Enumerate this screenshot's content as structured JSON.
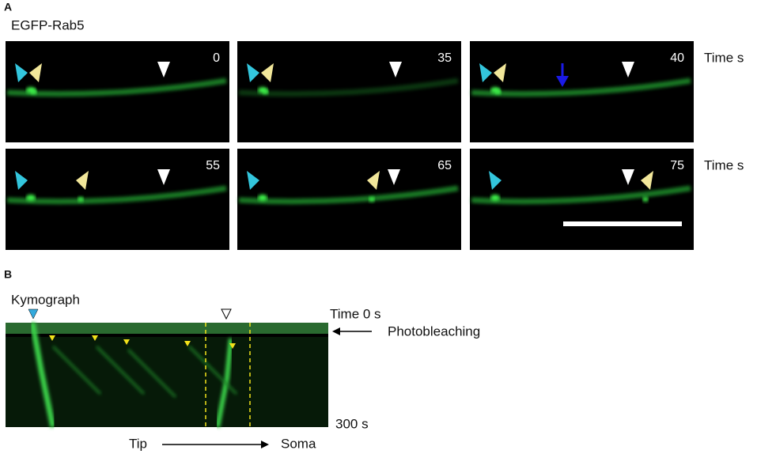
{
  "panel_a": {
    "label": "A",
    "title": "EGFP-Rab5",
    "rows": [
      {
        "label": "Time s",
        "frames": [
          0,
          35,
          40
        ]
      },
      {
        "label": "Time s",
        "frames": [
          55,
          65,
          75
        ]
      }
    ]
  },
  "panel_b": {
    "label": "B",
    "title": "Kymograph",
    "time_start": "Time 0 s",
    "annotation": "Photobleaching",
    "time_end": "300 s",
    "left": "Tip",
    "right": "Soma"
  }
}
